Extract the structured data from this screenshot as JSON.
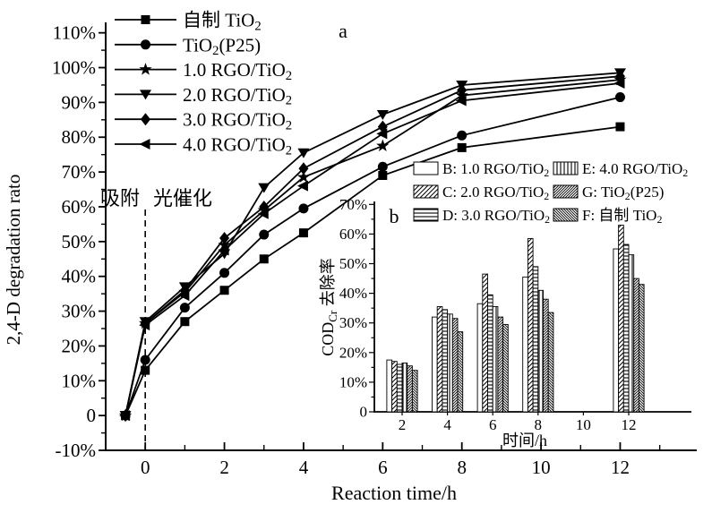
{
  "figure": {
    "panel_a_label": "a",
    "panel_b_label": "b",
    "background": "#ffffff",
    "ink": "#000000"
  },
  "chart_data": [
    {
      "type": "line",
      "title": "",
      "xlabel": "Reaction time/h",
      "ylabel": "2,4-D degradation rato",
      "xlim": [
        -1,
        13.8
      ],
      "ylim": [
        -10,
        113
      ],
      "x_tick_labels": [
        "0",
        "2",
        "4",
        "6",
        "8",
        "10",
        "12"
      ],
      "y_tick_labels": [
        "-10%",
        "0",
        "10%",
        "20%",
        "30%",
        "40%",
        "50%",
        "60%",
        "70%",
        "80%",
        "90%",
        "100%",
        "110%"
      ],
      "annotations": [
        "吸附",
        "光催化"
      ],
      "dashed_line_x": 0,
      "grid": false,
      "legend_position": "upper-left",
      "x": [
        -0.5,
        0,
        1,
        2,
        3,
        4,
        6,
        8,
        12
      ],
      "series": [
        {
          "name": "自制 TiO₂",
          "marker": "square",
          "values": [
            0,
            13,
            27,
            36,
            45,
            52.5,
            69,
            77,
            83
          ]
        },
        {
          "name": "TiO₂(P25)",
          "marker": "circle",
          "values": [
            0,
            16,
            31,
            41,
            52,
            59.5,
            71.5,
            80.5,
            91.5
          ]
        },
        {
          "name": "1.0 RGO/TiO₂",
          "marker": "star",
          "values": [
            0,
            26.5,
            35.5,
            49,
            59,
            68.5,
            77.5,
            92,
            96.5
          ]
        },
        {
          "name": "2.0 RGO/TiO₂",
          "marker": "triangle-down",
          "values": [
            0,
            27,
            37,
            46.5,
            65.5,
            75.5,
            86.5,
            95,
            98.5
          ]
        },
        {
          "name": "3.0 RGO/TiO₂",
          "marker": "diamond",
          "values": [
            0,
            26.5,
            36,
            51,
            60,
            71,
            83,
            93.5,
            97.5
          ]
        },
        {
          "name": "4.0 RGO/TiO₂",
          "marker": "triangle-left",
          "values": [
            0,
            26,
            34.5,
            47.5,
            58,
            66,
            81,
            90.5,
            95.5
          ]
        }
      ]
    },
    {
      "type": "bar",
      "title": "",
      "xlabel": "时间/h",
      "ylabel_pre": "COD",
      "ylabel_sub": "Cr",
      "ylabel_post": " 去除率",
      "ylim": [
        0,
        71
      ],
      "categories": [
        "2",
        "4",
        "6",
        "8",
        "10",
        "12"
      ],
      "y_tick_labels": [
        "0",
        "10%",
        "20%",
        "30%",
        "40%",
        "50%",
        "60%",
        "70%"
      ],
      "grid": false,
      "legend_position": "above",
      "series": [
        {
          "key": "B",
          "label": "B: 1.0 RGO/TiO₂",
          "hatch": "none",
          "values": [
            17.5,
            32,
            36.5,
            45.5,
            null,
            55
          ]
        },
        {
          "key": "C",
          "label": "C: 2.0 RGO/TiO₂",
          "hatch": "diag",
          "values": [
            17,
            35.5,
            46.5,
            58.5,
            null,
            63
          ]
        },
        {
          "key": "D",
          "label": "D: 3.0 RGO/TiO₂",
          "hatch": "horiz",
          "values": [
            16,
            34.5,
            39.5,
            49,
            null,
            56.5
          ]
        },
        {
          "key": "E",
          "label": "E: 4.0 RGO/TiO₂",
          "hatch": "vert",
          "values": [
            16.5,
            33,
            35.5,
            41,
            null,
            53
          ]
        },
        {
          "key": "G",
          "label": "G: TiO₂(P25)",
          "hatch": "dense-diag",
          "values": [
            15.5,
            31.5,
            32,
            38,
            null,
            45
          ]
        },
        {
          "key": "F",
          "label": "F: 自制 TiO₂",
          "hatch": "back-diag",
          "values": [
            14,
            27,
            29.5,
            33.5,
            null,
            43
          ]
        }
      ]
    }
  ]
}
